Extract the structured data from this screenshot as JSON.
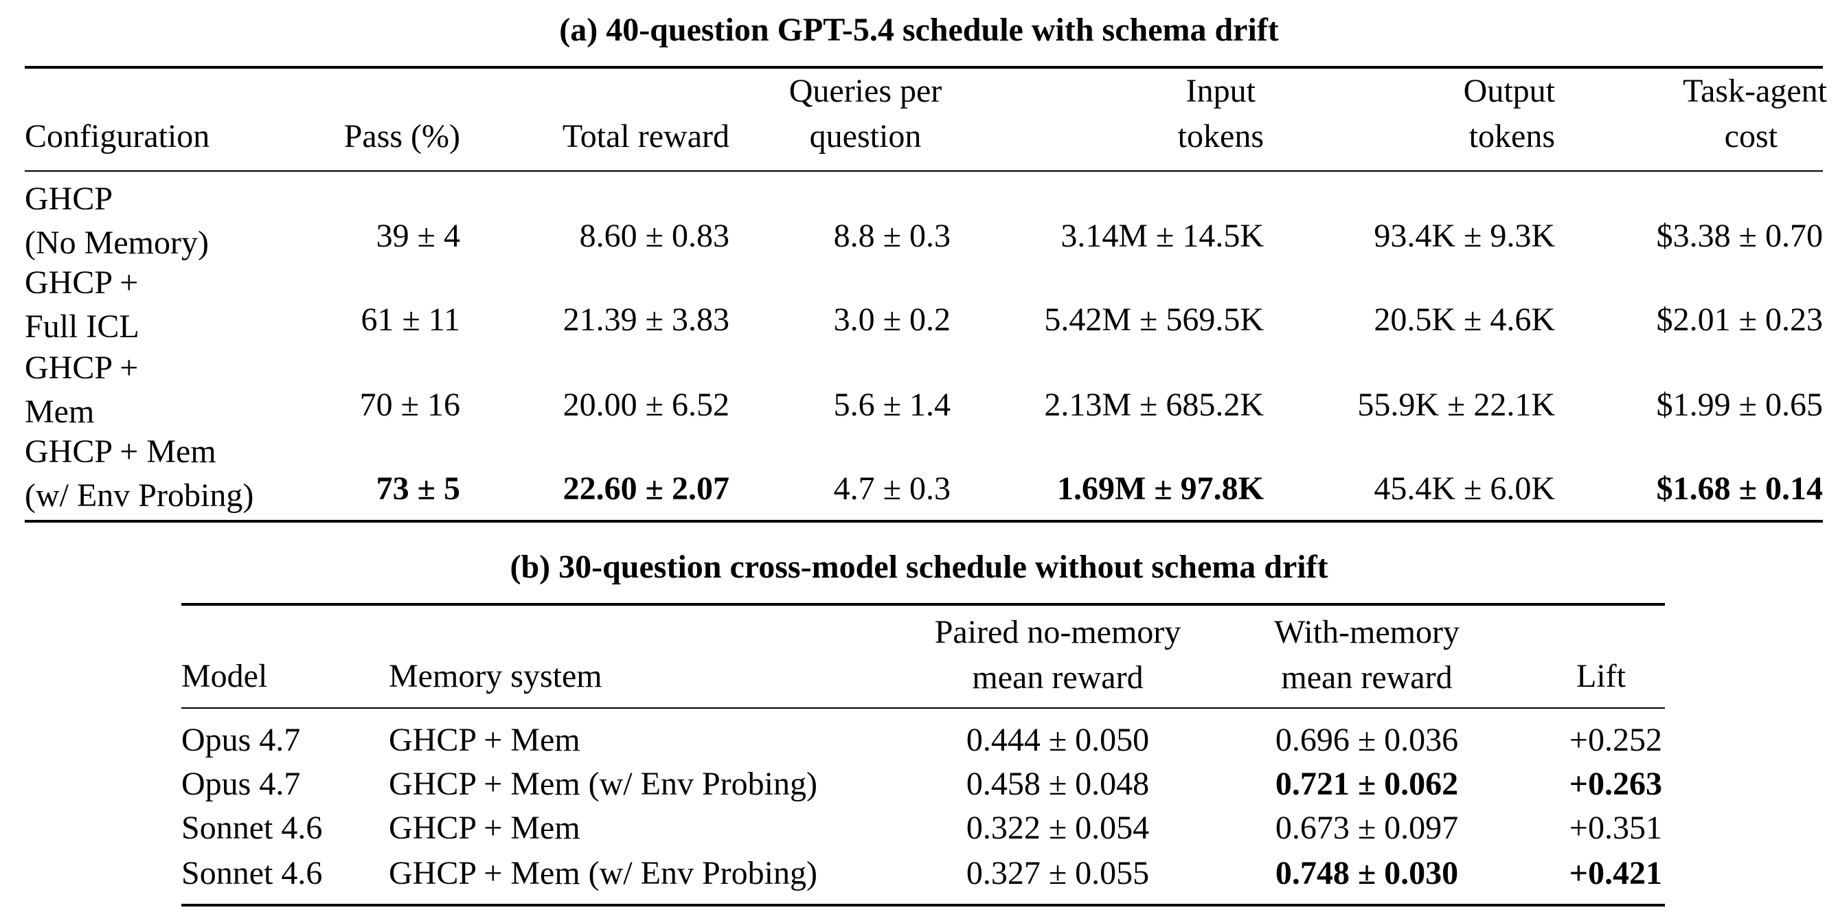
{
  "table_a": {
    "caption": "(a) 40-question GPT-5.4 schedule with schema drift",
    "headers": {
      "configuration": [
        "Configuration"
      ],
      "pass": [
        "Pass (%)"
      ],
      "total_reward": [
        "Total reward"
      ],
      "queries": [
        "Queries per",
        "question"
      ],
      "input_tokens": [
        "Input",
        "tokens"
      ],
      "output_tokens": [
        "Output",
        "tokens"
      ],
      "cost": [
        "Task-agent",
        "cost"
      ]
    },
    "rows": [
      {
        "configuration": [
          "GHCP",
          "(No Memory)"
        ],
        "pass": "39 ± 4",
        "total_reward": "8.60 ± 0.83",
        "queries": "8.8 ± 0.3",
        "input_tokens": "3.14M ± 14.5K",
        "output_tokens": "93.4K ± 9.3K",
        "cost": "$3.38 ± 0.70"
      },
      {
        "configuration": [
          "GHCP +",
          "Full ICL"
        ],
        "pass": "61 ± 11",
        "total_reward": "21.39 ± 3.83",
        "queries": "3.0 ± 0.2",
        "input_tokens": "5.42M ± 569.5K",
        "output_tokens": "20.5K ± 4.6K",
        "cost": "$2.01 ± 0.23"
      },
      {
        "configuration": [
          "GHCP +",
          "Mem"
        ],
        "pass": "70 ± 16",
        "total_reward": "20.00 ± 6.52",
        "queries": "5.6 ± 1.4",
        "input_tokens": "2.13M ± 685.2K",
        "output_tokens": "55.9K ± 22.1K",
        "cost": "$1.99 ± 0.65"
      },
      {
        "configuration": [
          "GHCP + Mem",
          "(w/ Env Probing)"
        ],
        "pass": "73 ± 5",
        "total_reward": "22.60 ± 2.07",
        "queries": "4.7 ± 0.3",
        "input_tokens": "1.69M ± 97.8K",
        "output_tokens": "45.4K ± 6.0K",
        "cost": "$1.68 ± 0.14"
      }
    ]
  },
  "table_b": {
    "caption": "(b) 30-question cross-model schedule without schema drift",
    "headers": {
      "model": [
        "Model"
      ],
      "memory_system": [
        "Memory system"
      ],
      "no_memory": [
        "Paired no-memory",
        "mean reward"
      ],
      "with_memory": [
        "With-memory",
        "mean reward"
      ],
      "lift": [
        "Lift"
      ]
    },
    "rows": [
      {
        "model": "Opus 4.7",
        "memory_system": "GHCP + Mem",
        "no_memory": "0.444 ± 0.050",
        "with_memory": "0.696 ± 0.036",
        "lift": "+0.252"
      },
      {
        "model": "Opus 4.7",
        "memory_system": "GHCP + Mem (w/ Env Probing)",
        "no_memory": "0.458 ± 0.048",
        "with_memory": "0.721 ± 0.062",
        "lift": "+0.263"
      },
      {
        "model": "Sonnet 4.6",
        "memory_system": "GHCP + Mem",
        "no_memory": "0.322 ± 0.054",
        "with_memory": "0.673 ± 0.097",
        "lift": "+0.351"
      },
      {
        "model": "Sonnet 4.6",
        "memory_system": "GHCP + Mem (w/ Env Probing)",
        "no_memory": "0.327 ± 0.055",
        "with_memory": "0.748 ± 0.030",
        "lift": "+0.421"
      }
    ]
  }
}
